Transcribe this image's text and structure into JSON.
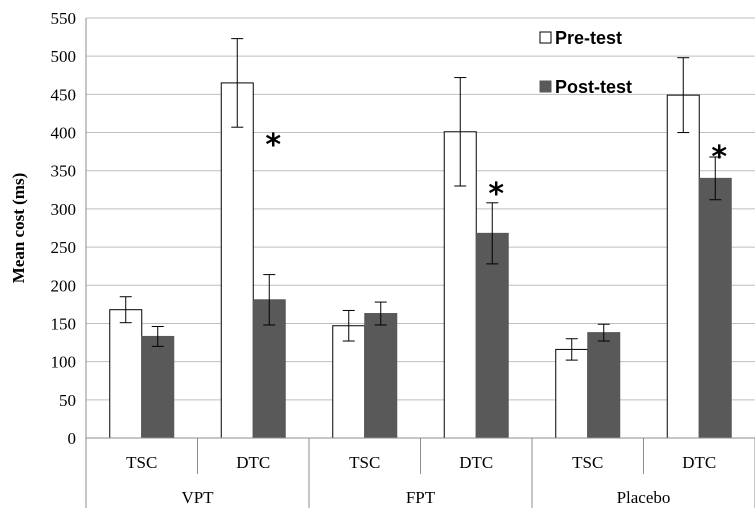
{
  "chart_data": {
    "type": "bar",
    "ylabel": "Mean cost (ms)",
    "ylim": [
      0,
      550
    ],
    "yticks": [
      0,
      50,
      100,
      150,
      200,
      250,
      300,
      350,
      400,
      450,
      500,
      550
    ],
    "grid": true,
    "legend_position": "top-right",
    "groups": [
      "VPT",
      "FPT",
      "Placebo"
    ],
    "categories": [
      "TSC",
      "DTC",
      "TSC",
      "DTC",
      "TSC",
      "DTC"
    ],
    "series": [
      {
        "name": "Pre-test",
        "color": "#ffffff",
        "values": [
          168,
          465,
          147,
          401,
          116,
          449
        ],
        "errors": [
          17,
          58,
          20,
          71,
          14,
          49
        ]
      },
      {
        "name": "Post-test",
        "color": "#595959",
        "values": [
          133,
          181,
          163,
          268,
          138,
          340
        ],
        "errors": [
          13,
          33,
          15,
          40,
          11,
          28
        ]
      }
    ],
    "significance_marker": "*",
    "significant_categories": [
      1,
      3,
      5
    ]
  }
}
